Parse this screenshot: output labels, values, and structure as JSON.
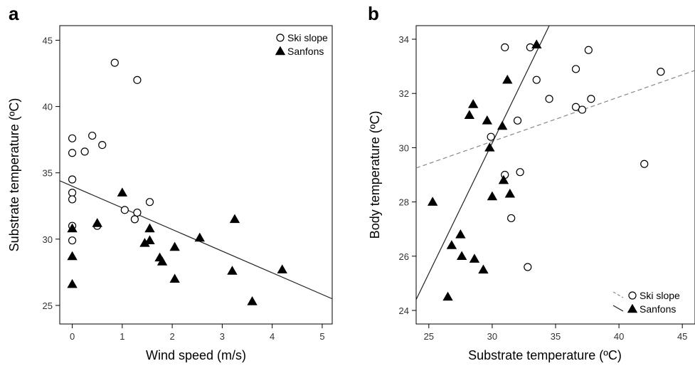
{
  "chart_data": [
    {
      "type": "scatter",
      "panel_label": "a",
      "xlabel": "Wind speed (m/s)",
      "ylabel": "Substrate temperature (ºC)",
      "xlim": [
        -0.25,
        5.2
      ],
      "ylim": [
        23.6,
        46.1
      ],
      "xticks": [
        0,
        1,
        2,
        3,
        4,
        5
      ],
      "yticks": [
        25,
        30,
        35,
        40,
        45
      ],
      "legend_position": "top-right",
      "series": [
        {
          "name": "Ski slope",
          "marker": "open-circle",
          "points": [
            [
              0,
              37.6
            ],
            [
              0,
              36.5
            ],
            [
              0,
              34.5
            ],
            [
              0,
              33.5
            ],
            [
              0,
              33.0
            ],
            [
              0,
              31.0
            ],
            [
              0,
              29.9
            ],
            [
              0.25,
              36.6
            ],
            [
              0.4,
              37.8
            ],
            [
              0.6,
              37.1
            ],
            [
              0.85,
              43.3
            ],
            [
              1.3,
              42.0
            ],
            [
              0.5,
              31.0
            ],
            [
              1.05,
              32.2
            ],
            [
              1.25,
              31.5
            ],
            [
              1.3,
              32.0
            ],
            [
              1.55,
              32.8
            ]
          ]
        },
        {
          "name": "Sanfons",
          "marker": "filled-triangle",
          "points": [
            [
              0,
              30.8
            ],
            [
              0,
              28.7
            ],
            [
              0,
              26.6
            ],
            [
              0.5,
              31.2
            ],
            [
              1.0,
              33.5
            ],
            [
              1.45,
              29.7
            ],
            [
              1.55,
              30.8
            ],
            [
              1.55,
              29.9
            ],
            [
              1.75,
              28.6
            ],
            [
              1.8,
              28.3
            ],
            [
              2.05,
              29.4
            ],
            [
              2.05,
              27.0
            ],
            [
              2.55,
              30.1
            ],
            [
              3.2,
              27.6
            ],
            [
              3.25,
              31.5
            ],
            [
              3.6,
              25.3
            ],
            [
              4.2,
              27.7
            ]
          ]
        }
      ],
      "regression_lines": [
        {
          "series": "all",
          "style": "solid",
          "x": [
            -0.25,
            5.2
          ],
          "y": [
            34.4,
            25.5
          ]
        }
      ]
    },
    {
      "type": "scatter",
      "panel_label": "b",
      "xlabel": "Substrate temperature (ºC)",
      "ylabel": "Body temperature (ºC)",
      "xlim": [
        24.0,
        46.0
      ],
      "ylim": [
        23.5,
        34.5
      ],
      "xticks": [
        25,
        30,
        35,
        40,
        45
      ],
      "yticks": [
        24,
        26,
        28,
        30,
        32,
        34
      ],
      "legend_position": "bottom-right",
      "series": [
        {
          "name": "Ski slope",
          "marker": "open-circle",
          "points": [
            [
              31.0,
              33.7
            ],
            [
              33.0,
              33.7
            ],
            [
              37.6,
              33.6
            ],
            [
              36.6,
              32.9
            ],
            [
              33.5,
              32.5
            ],
            [
              34.5,
              31.8
            ],
            [
              36.6,
              31.5
            ],
            [
              37.1,
              31.4
            ],
            [
              37.8,
              31.8
            ],
            [
              43.3,
              32.8
            ],
            [
              32.0,
              31.0
            ],
            [
              29.9,
              30.4
            ],
            [
              31.0,
              29.0
            ],
            [
              32.2,
              29.1
            ],
            [
              31.5,
              27.4
            ],
            [
              42.0,
              29.4
            ],
            [
              32.8,
              25.6
            ]
          ]
        },
        {
          "name": "Sanfons",
          "marker": "filled-triangle",
          "points": [
            [
              33.5,
              33.8
            ],
            [
              31.2,
              32.5
            ],
            [
              28.5,
              31.6
            ],
            [
              28.2,
              31.2
            ],
            [
              29.6,
              31.0
            ],
            [
              30.8,
              30.8
            ],
            [
              29.8,
              30.0
            ],
            [
              30.9,
              28.8
            ],
            [
              31.4,
              28.3
            ],
            [
              30.0,
              28.2
            ],
            [
              25.3,
              28.0
            ],
            [
              27.5,
              26.8
            ],
            [
              26.8,
              26.4
            ],
            [
              27.6,
              26.0
            ],
            [
              28.6,
              25.9
            ],
            [
              29.3,
              25.5
            ],
            [
              26.5,
              24.5
            ]
          ]
        }
      ],
      "regression_lines": [
        {
          "series": "Ski slope",
          "style": "dashed",
          "x": [
            24.0,
            46.0
          ],
          "y": [
            29.25,
            32.85
          ]
        },
        {
          "series": "Sanfons",
          "style": "solid",
          "x": [
            24.0,
            34.5
          ],
          "y": [
            24.4,
            34.5
          ]
        }
      ]
    }
  ]
}
